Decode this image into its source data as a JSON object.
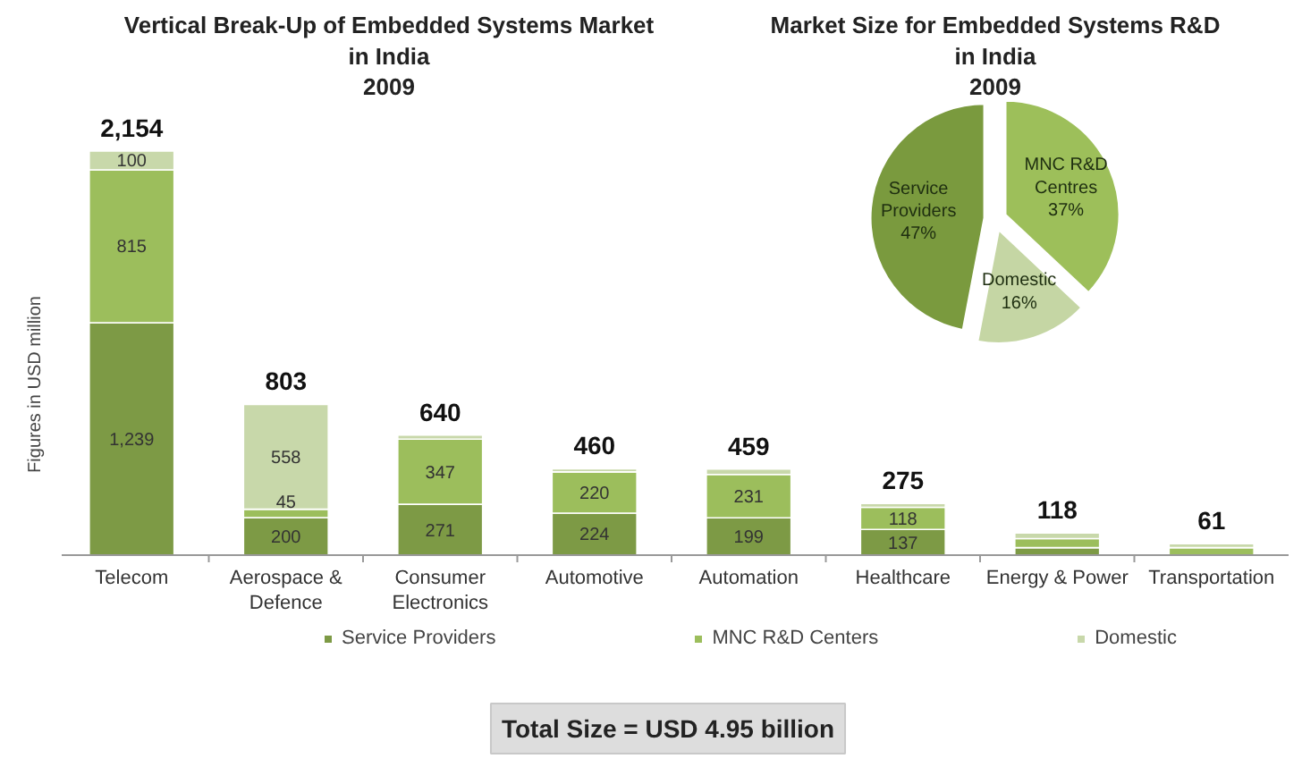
{
  "chart_data": [
    {
      "type": "bar",
      "title": "Vertical Break-Up of Embedded Systems Market\nin India\n2009",
      "ylabel": "Figures in USD million",
      "stacked": true,
      "legend": "bottom",
      "categories": [
        "Telecom",
        "Aerospace & Defence",
        "Consumer Electronics",
        "Automotive",
        "Automation",
        "Healthcare",
        "Energy & Power",
        "Transportation"
      ],
      "series": [
        {
          "name": "Service Providers",
          "color": "#7d9a45",
          "values": [
            1239,
            200,
            271,
            224,
            199,
            137,
            40,
            null
          ],
          "value_labels": [
            "1,239",
            "200",
            "271",
            "224",
            "199",
            "137",
            null,
            null
          ]
        },
        {
          "name": "MNC R&D Centers",
          "color": "#9cbe5c",
          "values": [
            815,
            45,
            347,
            220,
            231,
            118,
            48,
            40
          ],
          "value_labels": [
            "815",
            "45",
            "347",
            "220",
            "231",
            "118",
            null,
            null
          ]
        },
        {
          "name": "Domestic",
          "color": "#c8d8aa",
          "values": [
            100,
            558,
            22,
            16,
            29,
            20,
            30,
            21
          ],
          "value_labels": [
            "100",
            "558",
            null,
            null,
            null,
            null,
            null,
            null
          ]
        }
      ],
      "totals": [
        "2,154",
        "803",
        "640",
        "460",
        "459",
        "275",
        "118",
        "61"
      ],
      "annotations": [
        "Total Size = USD 4.95 billion"
      ]
    },
    {
      "type": "pie",
      "title": "Market Size for Embedded Systems R&D\nin India\n2009",
      "categories": [
        "Service Providers",
        "MNC R&D Centres",
        "Domestic"
      ],
      "values": [
        47,
        37,
        16
      ],
      "colors": [
        "#7a9a3e",
        "#9dbf5a",
        "#c5d6a4"
      ],
      "value_labels": [
        "47%",
        "37%",
        "16%"
      ]
    }
  ]
}
